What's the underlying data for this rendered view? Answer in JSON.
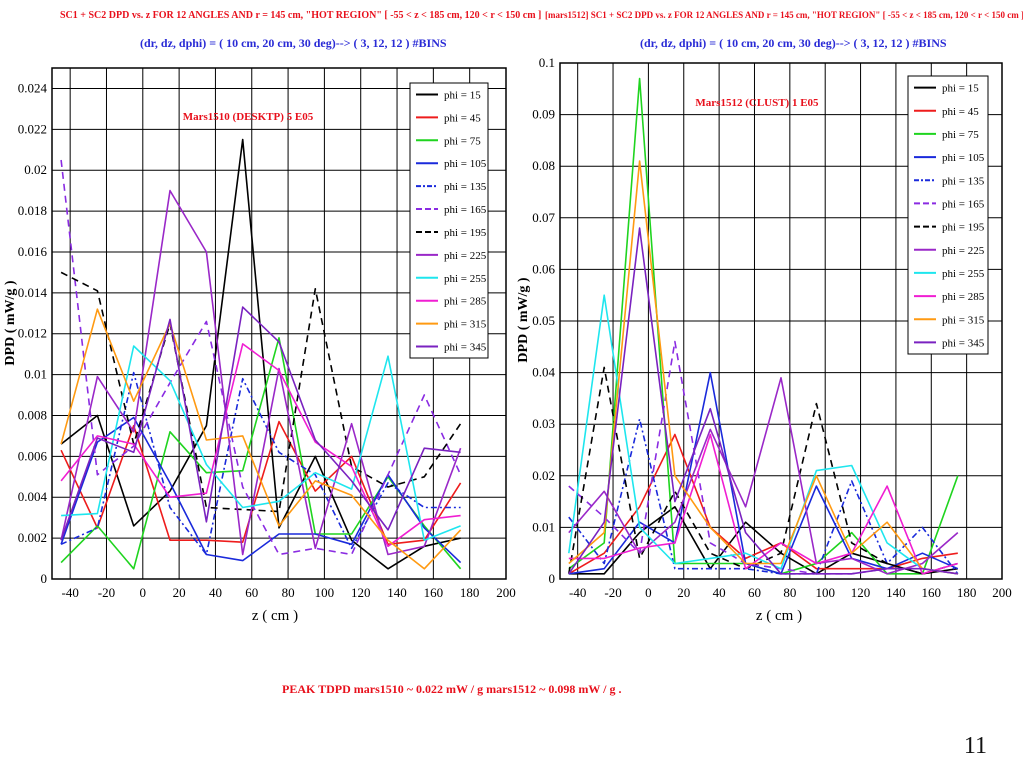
{
  "headers": {
    "left_title": "SC1 + SC2  DPD vs. z  FOR 12 ANGLES AND  r = 145 cm,  \"HOT REGION\"  [ -55 < z < 185 cm,  120 < r < 150 cm ]",
    "left_bins": "(dr, dz, dphi) =  ( 10 cm, 20 cm, 30 deg)--> ( 3, 12, 12 ) #BINS",
    "right_title": "[mars1512] SC1 + SC2  DPD vs. z  FOR 12 ANGLES AND r = 145 cm,  \"HOT REGION\"  [ -55 < z < 185 cm,  120 < r < 150 cm ]",
    "right_bins": "(dr, dz, dphi) =  ( 10 cm, 20 cm, 30 deg)--> ( 3, 12, 12 ) #BINS"
  },
  "footer": {
    "peak_text": "PEAK  TDPD  mars1510 ~ 0.022  mW / g   mars1512 ~ 0.098 mW / g .",
    "page_number": "11"
  },
  "colors": {
    "title_red": "#e8101c",
    "title_blue": "#2a2bd6"
  },
  "chart_data": [
    {
      "type": "line",
      "annotation": "Mars1510 (DESKTP)  5 E05",
      "xlabel": "z ( cm )",
      "ylabel": "DPD ( mW/g )",
      "xlim": [
        -50,
        200
      ],
      "ylim": [
        0,
        0.025
      ],
      "xticks": [
        -40,
        -20,
        0,
        20,
        40,
        60,
        80,
        100,
        120,
        140,
        160,
        180,
        200
      ],
      "yticks": [
        0,
        0.002,
        0.004,
        0.006,
        0.008,
        0.01,
        0.012,
        0.014,
        0.016,
        0.018,
        0.02,
        0.022,
        0.024
      ],
      "ytick_labels": [
        "0",
        "0.002",
        "0.004",
        "0.006",
        "0.008",
        "0.01",
        "0.012",
        "0.014",
        "0.016",
        "0.018",
        "0.02",
        "0.022",
        "0.024"
      ],
      "grid": true,
      "legend_position": "top-right",
      "x": [
        -45,
        -25,
        -5,
        15,
        35,
        55,
        75,
        95,
        115,
        135,
        155,
        175
      ],
      "series": [
        {
          "name": "phi = 15",
          "color": "#000000",
          "dash": "solid",
          "values": [
            0.0066,
            0.008,
            0.0026,
            0.0043,
            0.0075,
            0.0215,
            0.0025,
            0.006,
            0.0019,
            0.0005,
            0.0016,
            0.002
          ]
        },
        {
          "name": "phi = 45",
          "color": "#ee1c1c",
          "dash": "solid",
          "values": [
            0.0063,
            0.0025,
            0.0075,
            0.0019,
            0.0019,
            0.0018,
            0.0077,
            0.0043,
            0.006,
            0.0017,
            0.0019,
            0.0047
          ]
        },
        {
          "name": "phi = 75",
          "color": "#1fd41f",
          "dash": "solid",
          "values": [
            0.0008,
            0.0026,
            0.0005,
            0.0072,
            0.0052,
            0.0053,
            0.0118,
            0.0022,
            0.0022,
            0.005,
            0.0026,
            0.0005
          ]
        },
        {
          "name": "phi = 105",
          "color": "#1a2adb",
          "dash": "solid",
          "values": [
            0.0017,
            0.0067,
            0.0079,
            0.0047,
            0.0012,
            0.0009,
            0.0022,
            0.0022,
            0.0017,
            0.0051,
            0.0025,
            0.0008
          ]
        },
        {
          "name": "phi = 135",
          "color": "#1a2adb",
          "dash": "dashdot",
          "values": [
            0.0017,
            0.0025,
            0.0101,
            0.0035,
            0.0012,
            0.0098,
            0.0062,
            0.0051,
            0.0015,
            0.0047,
            0.0035,
            0.0035
          ]
        },
        {
          "name": "phi = 165",
          "color": "#8a2be2",
          "dash": "dashed",
          "values": [
            0.0205,
            0.0051,
            0.0065,
            0.0096,
            0.0126,
            0.0045,
            0.0012,
            0.0015,
            0.0012,
            0.0051,
            0.009,
            0.0051
          ]
        },
        {
          "name": "phi = 195",
          "color": "#000000",
          "dash": "dashed",
          "values": [
            0.015,
            0.0141,
            0.0066,
            0.0125,
            0.0035,
            0.0034,
            0.0033,
            0.0142,
            0.0055,
            0.0045,
            0.005,
            0.0076
          ]
        },
        {
          "name": "phi = 225",
          "color": "#9a28c8",
          "dash": "solid",
          "values": [
            0.0019,
            0.0099,
            0.0072,
            0.019,
            0.016,
            0.0012,
            0.0103,
            0.0015,
            0.0076,
            0.0012,
            0.0016,
            0.0064
          ]
        },
        {
          "name": "phi = 255",
          "color": "#1ee6ee",
          "dash": "solid",
          "values": [
            0.0031,
            0.0032,
            0.0114,
            0.0097,
            0.0056,
            0.0035,
            0.0038,
            0.0052,
            0.0044,
            0.0109,
            0.0019,
            0.0026
          ]
        },
        {
          "name": "phi = 285",
          "color": "#f01ed2",
          "dash": "solid",
          "values": [
            0.0048,
            0.007,
            0.0066,
            0.004,
            0.0042,
            0.0115,
            0.0102,
            0.0067,
            0.0055,
            0.0016,
            0.0029,
            0.0031
          ]
        },
        {
          "name": "phi = 315",
          "color": "#ff9a12",
          "dash": "solid",
          "values": [
            0.0066,
            0.0132,
            0.0087,
            0.0125,
            0.0068,
            0.007,
            0.0026,
            0.0048,
            0.0041,
            0.0019,
            0.0005,
            0.0024
          ]
        },
        {
          "name": "phi = 345",
          "color": "#7a22c0",
          "dash": "solid",
          "values": [
            0.0019,
            0.0069,
            0.0062,
            0.0127,
            0.0028,
            0.0133,
            0.0116,
            0.0068,
            0.0048,
            0.0024,
            0.0064,
            0.0062
          ]
        }
      ]
    },
    {
      "type": "line",
      "annotation": "Mars1512 (CLUST)  1 E05",
      "xlabel": "z ( cm )",
      "ylabel": "DPD ( mW/g )",
      "xlim": [
        -50,
        200
      ],
      "ylim": [
        0,
        0.1
      ],
      "xticks": [
        -40,
        -20,
        0,
        20,
        40,
        60,
        80,
        100,
        120,
        140,
        160,
        180,
        200
      ],
      "yticks": [
        0,
        0.01,
        0.02,
        0.03,
        0.04,
        0.05,
        0.06,
        0.07,
        0.08,
        0.09,
        0.1
      ],
      "ytick_labels": [
        "0",
        "0.01",
        "0.02",
        "0.03",
        "0.04",
        "0.05",
        "0.06",
        "0.07",
        "0.08",
        "0.09",
        "0.1"
      ],
      "grid": true,
      "legend_position": "top-right",
      "x": [
        -45,
        -25,
        -5,
        15,
        35,
        55,
        75,
        95,
        115,
        135,
        155,
        175
      ],
      "series": [
        {
          "name": "phi = 15",
          "color": "#000000",
          "dash": "solid",
          "values": [
            0.001,
            0.001,
            0.009,
            0.014,
            0.002,
            0.011,
            0.005,
            0.001,
            0.005,
            0.003,
            0.001,
            0.002
          ]
        },
        {
          "name": "phi = 45",
          "color": "#ee1c1c",
          "dash": "solid",
          "values": [
            0.001,
            0.005,
            0.014,
            0.028,
            0.01,
            0.004,
            0.007,
            0.002,
            0.002,
            0.002,
            0.004,
            0.005
          ]
        },
        {
          "name": "phi = 75",
          "color": "#1fd41f",
          "dash": "solid",
          "values": [
            0.002,
            0.007,
            0.097,
            0.003,
            0.003,
            0.003,
            0.001,
            0.003,
            0.009,
            0.001,
            0.001,
            0.02
          ]
        },
        {
          "name": "phi = 105",
          "color": "#1a2adb",
          "dash": "solid",
          "values": [
            0.001,
            0.002,
            0.011,
            0.007,
            0.04,
            0.003,
            0.001,
            0.018,
            0.004,
            0.002,
            0.005,
            0.002
          ]
        },
        {
          "name": "phi = 135",
          "color": "#1a2adb",
          "dash": "dashdot",
          "values": [
            0.012,
            0.003,
            0.031,
            0.002,
            0.002,
            0.002,
            0.001,
            0.001,
            0.019,
            0.003,
            0.01,
            0.001
          ]
        },
        {
          "name": "phi = 165",
          "color": "#8a2be2",
          "dash": "dashed",
          "values": [
            0.018,
            0.012,
            0.005,
            0.046,
            0.007,
            0.003,
            0.002,
            0.001,
            0.001,
            0.002,
            0.002,
            0.001
          ]
        },
        {
          "name": "phi = 195",
          "color": "#000000",
          "dash": "dashed",
          "values": [
            0.001,
            0.041,
            0.004,
            0.017,
            0.005,
            0.002,
            0.005,
            0.034,
            0.007,
            0.003,
            0.001,
            0.003
          ]
        },
        {
          "name": "phi = 225",
          "color": "#9a28c8",
          "dash": "solid",
          "values": [
            0.009,
            0.017,
            0.005,
            0.011,
            0.029,
            0.014,
            0.039,
            0.003,
            0.004,
            0.001,
            0.003,
            0.009
          ]
        },
        {
          "name": "phi = 255",
          "color": "#1ee6ee",
          "dash": "solid",
          "values": [
            0.005,
            0.055,
            0.01,
            0.003,
            0.004,
            0.005,
            0.002,
            0.021,
            0.022,
            0.007,
            0.002,
            0.001
          ]
        },
        {
          "name": "phi = 285",
          "color": "#f01ed2",
          "dash": "solid",
          "values": [
            0.004,
            0.004,
            0.006,
            0.007,
            0.028,
            0.002,
            0.007,
            0.003,
            0.005,
            0.018,
            0.001,
            0.003
          ]
        },
        {
          "name": "phi = 315",
          "color": "#ff9a12",
          "dash": "solid",
          "values": [
            0.003,
            0.009,
            0.081,
            0.02,
            0.01,
            0.003,
            0.003,
            0.02,
            0.005,
            0.011,
            0.002,
            0.001
          ]
        },
        {
          "name": "phi = 345",
          "color": "#7a22c0",
          "dash": "solid",
          "values": [
            0.001,
            0.011,
            0.068,
            0.015,
            0.033,
            0.009,
            0.001,
            0.001,
            0.001,
            0.002,
            0.002,
            0.001
          ]
        }
      ]
    }
  ]
}
